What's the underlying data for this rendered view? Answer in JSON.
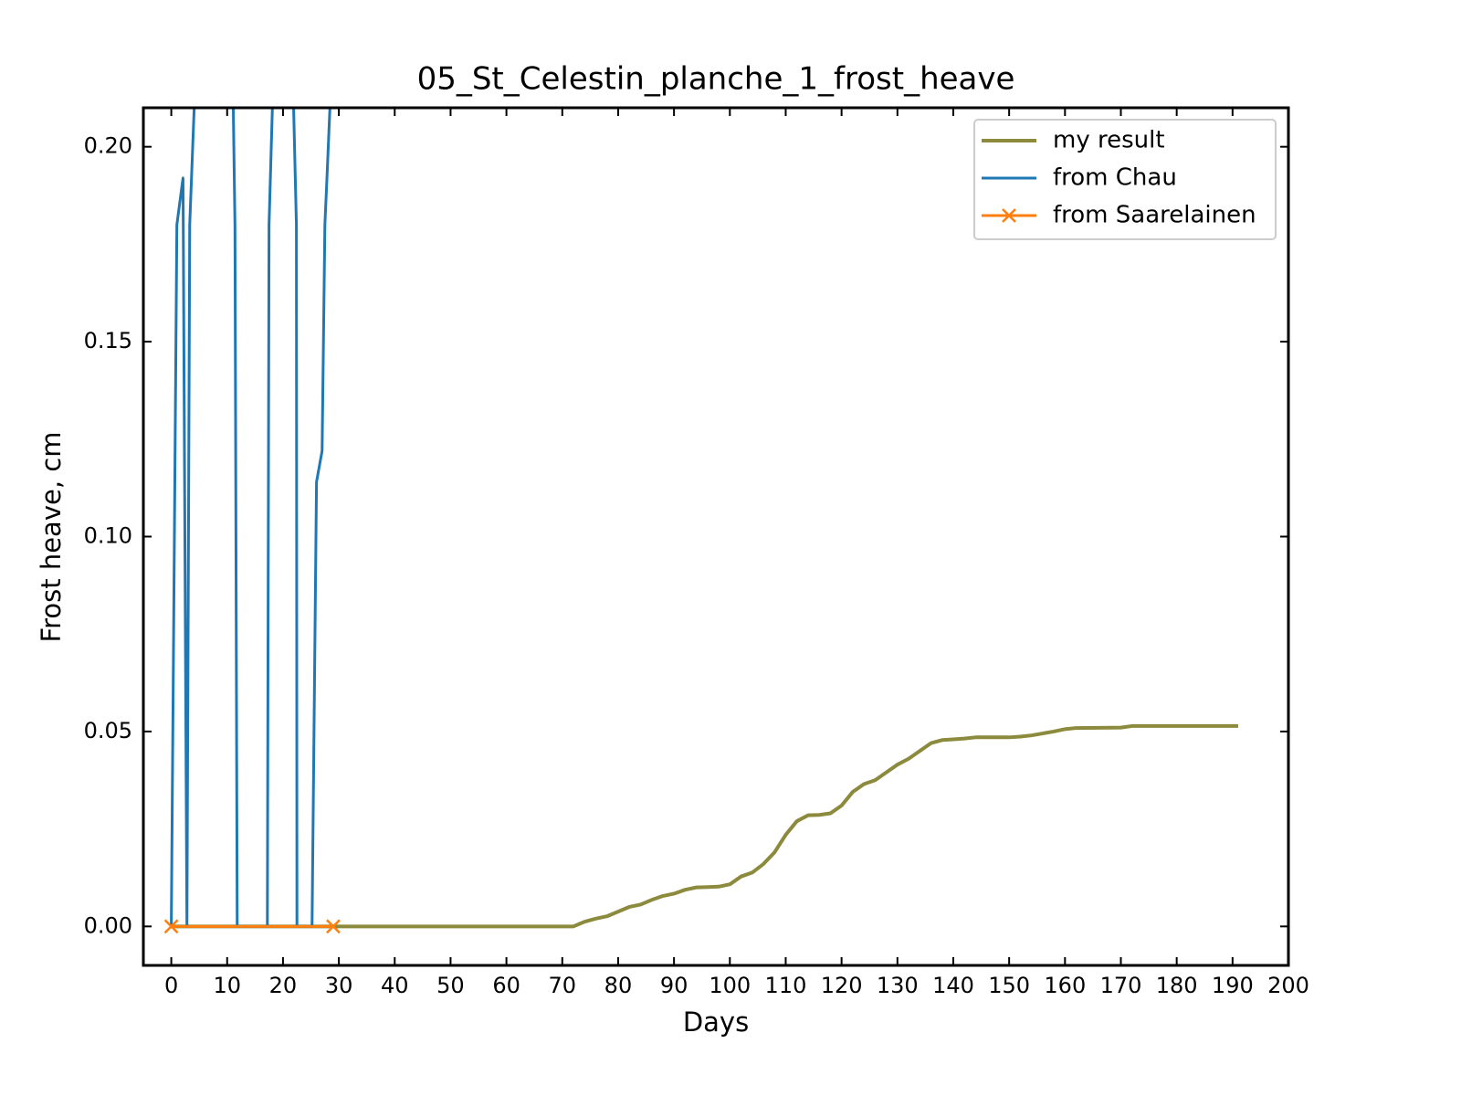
{
  "chart_data": {
    "type": "line",
    "title": "05_St_Celestin_planche_1_frost_heave",
    "xlabel": "Days",
    "ylabel": "Frost heave, cm",
    "xlim": [
      -5,
      200
    ],
    "ylim": [
      -0.01,
      0.21
    ],
    "xticks": [
      0,
      10,
      20,
      30,
      40,
      50,
      60,
      70,
      80,
      90,
      100,
      110,
      120,
      130,
      140,
      150,
      160,
      170,
      180,
      190,
      200
    ],
    "yticks": [
      {
        "value": 0,
        "label": "0.00"
      },
      {
        "value": 0.05,
        "label": "0.05"
      },
      {
        "value": 0.1,
        "label": "0.10"
      },
      {
        "value": 0.15,
        "label": "0.15"
      },
      {
        "value": 0.2,
        "label": "0.20"
      }
    ],
    "tick_direction": "in",
    "mirror_ticks": true,
    "legend": "upper right",
    "series": [
      {
        "name": "my result",
        "color": "#8c8a3c",
        "marker": "none",
        "x": [
          0,
          72,
          74,
          76,
          78,
          80,
          82,
          84,
          86,
          88,
          90,
          92,
          94,
          96,
          98,
          100,
          102,
          104,
          106,
          108,
          110,
          112,
          114,
          116,
          118,
          120,
          122,
          124,
          126,
          128,
          130,
          132,
          134,
          136,
          138,
          140,
          142,
          144,
          150,
          152,
          154,
          156,
          158,
          160,
          162,
          170,
          172,
          191
        ],
        "values": [
          0,
          0,
          0.0012,
          0.002,
          0.0026,
          0.0038,
          0.005,
          0.0056,
          0.0068,
          0.0078,
          0.0084,
          0.0094,
          0.01,
          0.0101,
          0.0102,
          0.0108,
          0.0128,
          0.0138,
          0.016,
          0.019,
          0.0235,
          0.027,
          0.0285,
          0.0286,
          0.029,
          0.031,
          0.0345,
          0.0365,
          0.0375,
          0.0395,
          0.0415,
          0.043,
          0.045,
          0.047,
          0.0478,
          0.048,
          0.0482,
          0.0485,
          0.0485,
          0.0487,
          0.049,
          0.0495,
          0.05,
          0.0506,
          0.0509,
          0.051,
          0.0514,
          0.0514
        ]
      },
      {
        "name": "from Chau",
        "color": "#1f77b4",
        "marker": "none",
        "x": [
          0,
          1,
          2.1,
          2.8,
          3.3,
          4.1,
          7,
          11.1,
          11.4,
          11.8,
          17.2,
          17.5,
          18.1,
          20,
          21.9,
          22.4,
          22.5,
          25.2,
          26,
          27,
          27.5,
          27.9,
          28.4,
          30
        ],
        "values": [
          0,
          0.18,
          0.192,
          0,
          0.18,
          0.21,
          0.3,
          0.21,
          0.18,
          0,
          0,
          0.18,
          0.21,
          0.3,
          0.21,
          0.18,
          0,
          0,
          0.114,
          0.122,
          0.18,
          0.193,
          0.21,
          0.3
        ]
      },
      {
        "name": "from Saarelainen",
        "color": "#ff7f0e",
        "marker": "x",
        "x": [
          0,
          29
        ],
        "values": [
          0,
          0
        ]
      }
    ]
  }
}
